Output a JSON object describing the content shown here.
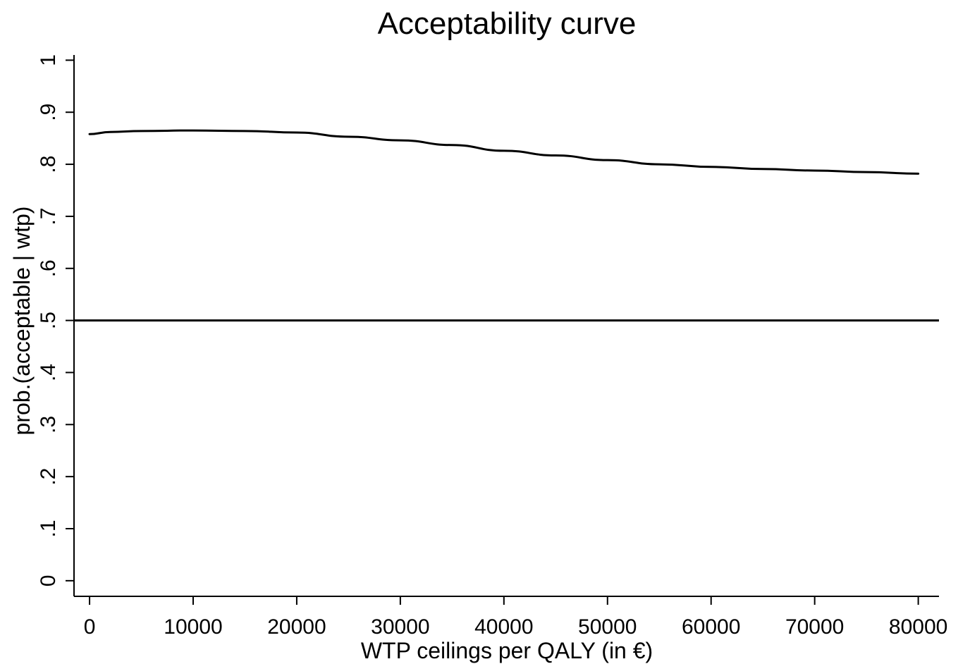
{
  "chart_data": {
    "type": "line",
    "title": "Acceptability curve",
    "xlabel": "WTP ceilings per QALY (in €)",
    "ylabel": "prob.(acceptable | wtp)",
    "xlim": [
      -1500,
      82000
    ],
    "ylim": [
      -0.03,
      1.01
    ],
    "x_ticks": [
      0,
      10000,
      20000,
      30000,
      40000,
      50000,
      60000,
      70000,
      80000
    ],
    "x_tick_labels": [
      "0",
      "10000",
      "20000",
      "30000",
      "40000",
      "50000",
      "60000",
      "70000",
      "80000"
    ],
    "y_ticks": [
      0,
      0.1,
      0.2,
      0.3,
      0.4,
      0.5,
      0.6,
      0.7,
      0.8,
      0.9,
      1
    ],
    "y_tick_labels": [
      "0",
      ".1",
      ".2",
      ".3",
      ".4",
      ".5",
      ".6",
      ".7",
      ".8",
      ".9",
      "1"
    ],
    "grid": false,
    "legend": "none",
    "series": [
      {
        "x": [
          0,
          2000,
          5000,
          10000,
          15000,
          20000,
          25000,
          30000,
          35000,
          40000,
          45000,
          50000,
          55000,
          60000,
          65000,
          70000,
          75000,
          80000
        ],
        "values": [
          0.858,
          0.862,
          0.864,
          0.865,
          0.864,
          0.861,
          0.853,
          0.846,
          0.837,
          0.826,
          0.817,
          0.808,
          0.8,
          0.795,
          0.791,
          0.788,
          0.785,
          0.782
        ]
      }
    ],
    "reference_lines": [
      {
        "orientation": "horizontal",
        "y": 0.5
      }
    ],
    "colors": {
      "line": "#000000",
      "axis": "#000000",
      "background": "#ffffff"
    }
  }
}
